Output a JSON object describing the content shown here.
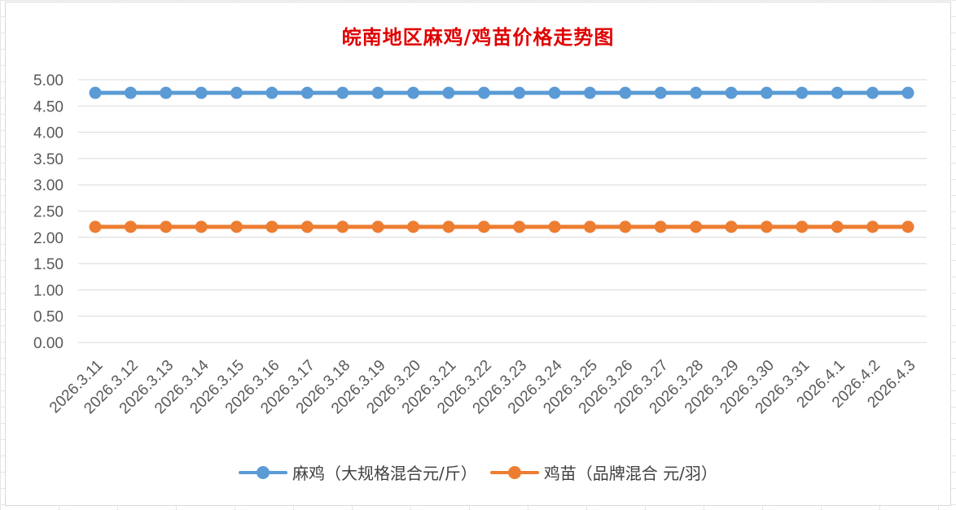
{
  "chart_data": {
    "type": "line",
    "title": "皖南地区麻鸡/鸡苗价格走势图",
    "xlabel": "",
    "ylabel": "",
    "ylim": [
      0,
      5
    ],
    "y_ticks": [
      "0.00",
      "0.50",
      "1.00",
      "1.50",
      "2.00",
      "2.50",
      "3.00",
      "3.50",
      "4.00",
      "4.50",
      "5.00"
    ],
    "grid": true,
    "legend_position": "bottom",
    "categories": [
      "2026.3.11",
      "2026.3.12",
      "2026.3.13",
      "2026.3.14",
      "2026.3.15",
      "2026.3.16",
      "2026.3.17",
      "2026.3.18",
      "2026.3.19",
      "2026.3.20",
      "2026.3.21",
      "2026.3.22",
      "2026.3.23",
      "2026.3.24",
      "2026.3.25",
      "2026.3.26",
      "2026.3.27",
      "2026.3.28",
      "2026.3.29",
      "2026.3.30",
      "2026.3.31",
      "2026.4.1",
      "2026.4.2",
      "2026.4.3"
    ],
    "series": [
      {
        "name": "麻鸡（大规格混合元/斤）",
        "color": "#5b9bd5",
        "values": [
          4.75,
          4.75,
          4.75,
          4.75,
          4.75,
          4.75,
          4.75,
          4.75,
          4.75,
          4.75,
          4.75,
          4.75,
          4.75,
          4.75,
          4.75,
          4.75,
          4.75,
          4.75,
          4.75,
          4.75,
          4.75,
          4.75,
          4.75,
          4.75
        ]
      },
      {
        "name": "鸡苗（品牌混合 元/羽）",
        "color": "#ed7d31",
        "values": [
          2.2,
          2.2,
          2.2,
          2.2,
          2.2,
          2.2,
          2.2,
          2.2,
          2.2,
          2.2,
          2.2,
          2.2,
          2.2,
          2.2,
          2.2,
          2.2,
          2.2,
          2.2,
          2.2,
          2.2,
          2.2,
          2.2,
          2.2,
          2.2
        ]
      }
    ]
  }
}
